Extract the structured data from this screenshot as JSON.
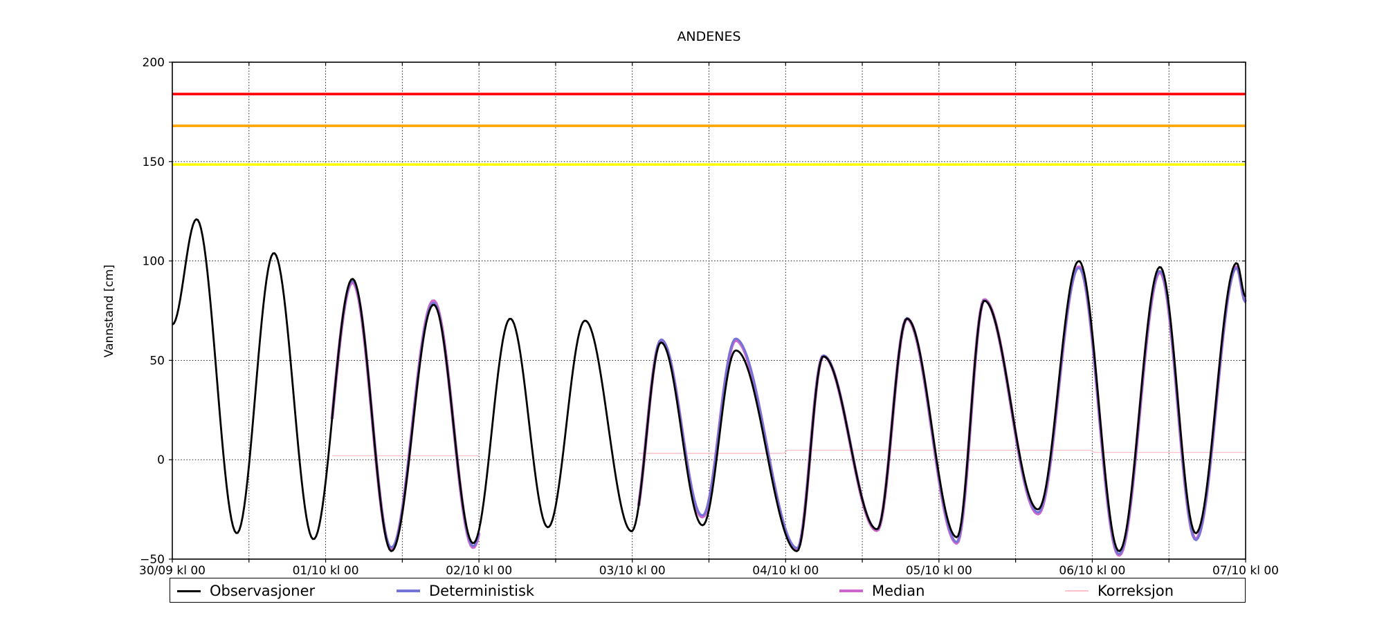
{
  "title": "ANDENES",
  "ylabel": "Vannstand [cm]",
  "axes": {
    "ylim": [
      -50,
      200
    ],
    "xlim_hours": [
      0,
      168
    ],
    "yticks": [
      {
        "value": 200,
        "label": "200"
      },
      {
        "value": 150,
        "label": "150"
      },
      {
        "value": 100,
        "label": "100"
      },
      {
        "value": 50,
        "label": "50"
      },
      {
        "value": 0,
        "label": "0"
      },
      {
        "value": -50,
        "label": "−50"
      }
    ],
    "xticks": [
      {
        "hour": 0,
        "label": "30/09 kl 00"
      },
      {
        "hour": 24,
        "label": "01/10 kl 00"
      },
      {
        "hour": 48,
        "label": "02/10 kl 00"
      },
      {
        "hour": 72,
        "label": "03/10 kl 00"
      },
      {
        "hour": 96,
        "label": "04/10 kl 00"
      },
      {
        "hour": 120,
        "label": "05/10 kl 00"
      },
      {
        "hour": 144,
        "label": "06/10 kl 00"
      },
      {
        "hour": 168,
        "label": "07/10 kl 00"
      }
    ],
    "grid_y_values": [
      150,
      100,
      50,
      0
    ],
    "grid_x_hours": [
      12,
      24,
      36,
      48,
      60,
      72,
      84,
      96,
      108,
      120,
      132,
      144,
      156
    ],
    "grid_color": "#000000"
  },
  "thresholds": [
    {
      "name": "red-warning-line",
      "value": 184,
      "color": "#ff0000"
    },
    {
      "name": "orange-warning-line",
      "value": 168,
      "color": "#ffa500"
    },
    {
      "name": "yellow-warning-line",
      "value": 148.5,
      "color": "#ffff00"
    }
  ],
  "legend": {
    "items": [
      {
        "label": "Observasjoner",
        "color": "#000000",
        "thickness": 3
      },
      {
        "label": "Deterministisk",
        "color": "#7474d8",
        "thickness": 4
      },
      {
        "label": "Median",
        "color": "#cc66cc",
        "thickness": 4
      },
      {
        "label": "Korreksjon",
        "color": "#ffc1cc",
        "thickness": 2
      }
    ]
  },
  "chart_data": {
    "type": "line",
    "title": "ANDENES",
    "xlabel": "",
    "ylabel": "Vannstand [cm]",
    "x_unit": "hours since 30/09 kl 00",
    "ylim": [
      -50,
      200
    ],
    "series": [
      {
        "name": "Observasjoner",
        "color": "#000000",
        "width": 2.8,
        "extrema": [
          [
            0,
            68
          ],
          [
            3.8,
            121
          ],
          [
            10.1,
            -37
          ],
          [
            15.9,
            104
          ],
          [
            22.1,
            -40
          ],
          [
            28.2,
            91
          ],
          [
            34.3,
            -46
          ],
          [
            40.9,
            78
          ],
          [
            47.1,
            -42
          ],
          [
            52.9,
            71
          ],
          [
            58.8,
            -34
          ],
          [
            64.6,
            70
          ],
          [
            71.9,
            -36
          ],
          [
            76.5,
            59
          ],
          [
            83.0,
            -33
          ],
          [
            88.2,
            55
          ],
          [
            97.8,
            -46
          ],
          [
            101.9,
            52
          ],
          [
            110.3,
            -35
          ],
          [
            115.0,
            71
          ],
          [
            122.8,
            -39
          ],
          [
            127.1,
            80
          ],
          [
            135.5,
            -25
          ],
          [
            141.9,
            100
          ],
          [
            148.2,
            -46
          ],
          [
            154.6,
            97
          ],
          [
            160.2,
            -37
          ],
          [
            166.6,
            99
          ],
          [
            168,
            82
          ]
        ]
      },
      {
        "name": "Deterministisk",
        "color": "#7474d8",
        "width": 3,
        "based_on": "Observasjoner",
        "segments": [
          {
            "range": [
              25,
              48
            ],
            "delta_points": [
              [
                25,
                0
              ],
              [
                28.2,
                -1
              ],
              [
                34.3,
                2
              ],
              [
                40.9,
                1
              ],
              [
                47.1,
                -1.5
              ],
              [
                48,
                -1
              ]
            ]
          },
          {
            "range": [
              73,
              168
            ],
            "delta_points": [
              [
                73,
                0
              ],
              [
                76.5,
                1.5
              ],
              [
                83,
                5
              ],
              [
                88.2,
                6
              ],
              [
                97.8,
                1.5
              ],
              [
                101.9,
                0.5
              ],
              [
                110.3,
                0
              ],
              [
                115,
                0.3
              ],
              [
                122.8,
                -2.5
              ],
              [
                127.1,
                0.3
              ],
              [
                135.5,
                -1.5
              ],
              [
                141.9,
                -3.5
              ],
              [
                148.2,
                -1.5
              ],
              [
                154.6,
                -2
              ],
              [
                160.2,
                -3.5
              ],
              [
                166.6,
                -2.5
              ],
              [
                168,
                -3
              ]
            ]
          }
        ]
      },
      {
        "name": "Median",
        "color": "#cc66cc",
        "width": 4.6,
        "based_on": "Observasjoner",
        "segments": [
          {
            "range": [
              25,
              48
            ],
            "delta_points": [
              [
                25,
                0
              ],
              [
                28.2,
                -1.8
              ],
              [
                34.3,
                1.2
              ],
              [
                40.9,
                2
              ],
              [
                47.1,
                -2.2
              ],
              [
                48,
                -1.5
              ]
            ]
          },
          {
            "range": [
              73,
              168
            ],
            "delta_points": [
              [
                73,
                0
              ],
              [
                76.5,
                1
              ],
              [
                83,
                4.3
              ],
              [
                88.2,
                5.2
              ],
              [
                97.8,
                1
              ],
              [
                101.9,
                0.2
              ],
              [
                110.3,
                -0.6
              ],
              [
                115,
                0
              ],
              [
                122.8,
                -3
              ],
              [
                127.1,
                0.6
              ],
              [
                135.5,
                -2.2
              ],
              [
                141.9,
                -3
              ],
              [
                148.2,
                -2
              ],
              [
                154.6,
                -2.6
              ],
              [
                160.2,
                -3
              ],
              [
                166.6,
                -2
              ],
              [
                168,
                -2.5
              ]
            ]
          }
        ]
      },
      {
        "name": "Korreksjon",
        "color": "#ffc1cc",
        "width": 1.4,
        "polylines": [
          [
            [
              25,
              2.0
            ],
            [
              48,
              2.0
            ]
          ],
          [
            [
              73,
              3.2
            ],
            [
              95.7,
              3.2
            ],
            [
              96.3,
              4.8
            ],
            [
              143.7,
              4.8
            ],
            [
              144.3,
              3.7
            ],
            [
              168,
              3.7
            ]
          ]
        ]
      }
    ]
  }
}
